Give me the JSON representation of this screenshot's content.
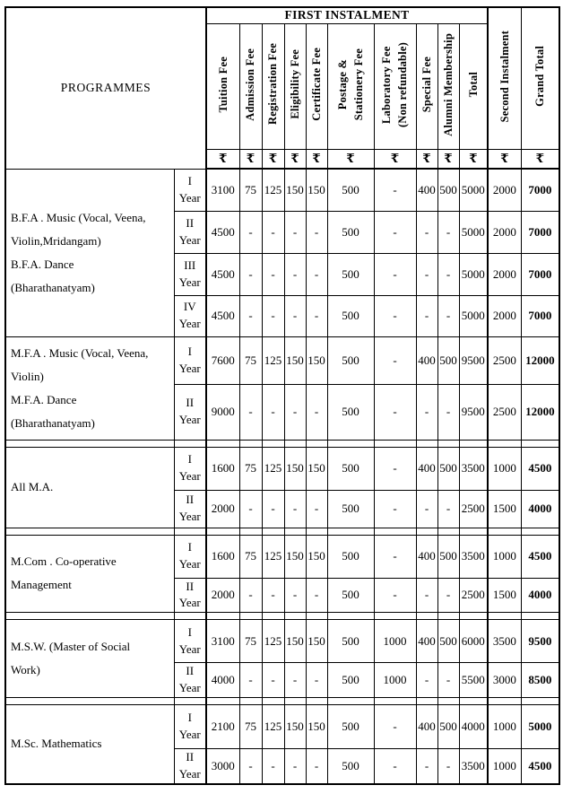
{
  "table": {
    "programmes_header": "PROGRAMMES",
    "first_instalment_header": "FIRST INSTALMENT",
    "currency_symbol": "₹",
    "fee_columns": [
      "Tuition Fee",
      "Admission Fee",
      "Registration Fee",
      "Eligibility Fee",
      "Certificate Fee",
      "Postage &\nStationery Fee",
      "Laboratory Fee\n(Non refundable)",
      "Special Fee",
      "Alumni Membership",
      "Total"
    ],
    "outer_columns": [
      "Second Instalment",
      "Grand Total"
    ],
    "sections": [
      {
        "programme": "B.F.A . Music (Vocal, Veena,\nViolin,Mridangam)\nB.F.A. Dance\n(Bharathanatyam)",
        "rows": [
          {
            "year": "I\nYear",
            "values": [
              "3100",
              "75",
              "125",
              "150",
              "150",
              "500",
              "-",
              "400",
              "500",
              "5000",
              "2000",
              "7000"
            ]
          },
          {
            "year": "II\nYear",
            "values": [
              "4500",
              "-",
              "-",
              "-",
              "-",
              "500",
              "-",
              "-",
              "-",
              "5000",
              "2000",
              "7000"
            ]
          },
          {
            "year": "III\nYear",
            "values": [
              "4500",
              "-",
              "-",
              "-",
              "-",
              "500",
              "-",
              "-",
              "-",
              "5000",
              "2000",
              "7000"
            ]
          },
          {
            "year": "IV\nYear",
            "values": [
              "4500",
              "-",
              "-",
              "-",
              "-",
              "500",
              "-",
              "-",
              "-",
              "5000",
              "2000",
              "7000"
            ]
          }
        ]
      },
      {
        "programme": "M.F.A . Music (Vocal, Veena,\nViolin)\nM.F.A. Dance\n(Bharathanatyam)",
        "rows": [
          {
            "year": "I\nYear",
            "values": [
              "7600",
              "75",
              "125",
              "150",
              "150",
              "500",
              "-",
              "400",
              "500",
              "9500",
              "2500",
              "12000"
            ]
          },
          {
            "year": "II\nYear",
            "values": [
              "9000",
              "-",
              "-",
              "-",
              "-",
              "500",
              "-",
              "-",
              "-",
              "9500",
              "2500",
              "12000"
            ]
          }
        ]
      },
      {
        "programme": "All M.A.",
        "rows": [
          {
            "year": "I\nYear",
            "values": [
              "1600",
              "75",
              "125",
              "150",
              "150",
              "500",
              "-",
              "400",
              "500",
              "3500",
              "1000",
              "4500"
            ]
          },
          {
            "year": "II\nYear",
            "values": [
              "2000",
              "-",
              "-",
              "-",
              "-",
              "500",
              "-",
              "-",
              "-",
              "2500",
              "1500",
              "4000"
            ]
          }
        ]
      },
      {
        "programme": "M.Com . Co-operative\nManagement",
        "rows": [
          {
            "year": "I\nYear",
            "values": [
              "1600",
              "75",
              "125",
              "150",
              "150",
              "500",
              "-",
              "400",
              "500",
              "3500",
              "1000",
              "4500"
            ]
          },
          {
            "year": "II\nYear",
            "values": [
              "2000",
              "-",
              "-",
              "-",
              "-",
              "500",
              "-",
              "-",
              "-",
              "2500",
              "1500",
              "4000"
            ]
          }
        ]
      },
      {
        "programme": "M.S.W. (Master of Social\nWork)",
        "rows": [
          {
            "year": "I\nYear",
            "values": [
              "3100",
              "75",
              "125",
              "150",
              "150",
              "500",
              "1000",
              "400",
              "500",
              "6000",
              "3500",
              "9500"
            ]
          },
          {
            "year": "II\nYear",
            "values": [
              "4000",
              "-",
              "-",
              "-",
              "-",
              "500",
              "1000",
              "-",
              "-",
              "5500",
              "3000",
              "8500"
            ]
          }
        ]
      },
      {
        "programme": "M.Sc. Mathematics",
        "rows": [
          {
            "year": "I\nYear",
            "values": [
              "2100",
              "75",
              "125",
              "150",
              "150",
              "500",
              "-",
              "400",
              "500",
              "4000",
              "1000",
              "5000"
            ]
          },
          {
            "year": "II\nYear",
            "values": [
              "3000",
              "-",
              "-",
              "-",
              "-",
              "500",
              "-",
              "-",
              "-",
              "3500",
              "1000",
              "4500"
            ]
          }
        ]
      }
    ],
    "colors": {
      "border": "#000000",
      "text": "#000000",
      "background": "#ffffff"
    }
  }
}
